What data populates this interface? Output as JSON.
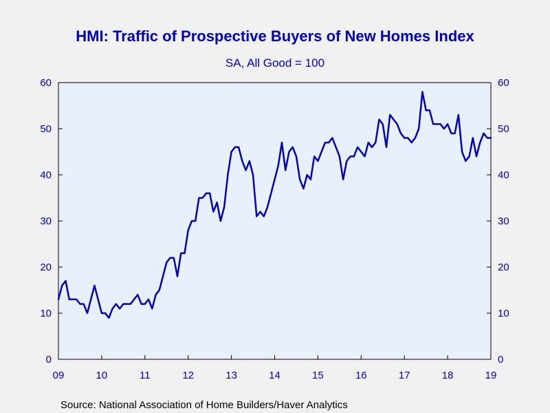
{
  "chart_data": {
    "type": "line",
    "title": "HMI: Traffic of Prospective Buyers of New Homes Index",
    "subtitle": "SA, All Good = 100",
    "source": "Source:  National Association of Home Builders/Haver Analytics",
    "ylim": [
      0,
      60
    ],
    "y_ticks": [
      "0",
      "10",
      "20",
      "30",
      "40",
      "50",
      "60"
    ],
    "x_ticks": [
      "09",
      "10",
      "11",
      "12",
      "13",
      "14",
      "15",
      "16",
      "17",
      "18",
      "19"
    ],
    "grid": false,
    "line_color": "#0000b4",
    "plot_background": "#e8f0fc",
    "x": [
      2009.0,
      2009.0833,
      2009.1667,
      2009.25,
      2009.3333,
      2009.4167,
      2009.5,
      2009.5833,
      2009.6667,
      2009.75,
      2009.8333,
      2009.9167,
      2010.0,
      2010.0833,
      2010.1667,
      2010.25,
      2010.3333,
      2010.4167,
      2010.5,
      2010.5833,
      2010.6667,
      2010.75,
      2010.8333,
      2010.9167,
      2011.0,
      2011.0833,
      2011.1667,
      2011.25,
      2011.3333,
      2011.4167,
      2011.5,
      2011.5833,
      2011.6667,
      2011.75,
      2011.8333,
      2011.9167,
      2012.0,
      2012.0833,
      2012.1667,
      2012.25,
      2012.3333,
      2012.4167,
      2012.5,
      2012.5833,
      2012.6667,
      2012.75,
      2012.8333,
      2012.9167,
      2013.0,
      2013.0833,
      2013.1667,
      2013.25,
      2013.3333,
      2013.4167,
      2013.5,
      2013.5833,
      2013.6667,
      2013.75,
      2013.8333,
      2013.9167,
      2014.0,
      2014.0833,
      2014.1667,
      2014.25,
      2014.3333,
      2014.4167,
      2014.5,
      2014.5833,
      2014.6667,
      2014.75,
      2014.8333,
      2014.9167,
      2015.0,
      2015.0833,
      2015.1667,
      2015.25,
      2015.3333,
      2015.4167,
      2015.5,
      2015.5833,
      2015.6667,
      2015.75,
      2015.8333,
      2015.9167,
      2016.0,
      2016.0833,
      2016.1667,
      2016.25,
      2016.3333,
      2016.4167,
      2016.5,
      2016.5833,
      2016.6667,
      2016.75,
      2016.8333,
      2016.9167,
      2017.0,
      2017.0833,
      2017.1667,
      2017.25,
      2017.3333,
      2017.4167,
      2017.5,
      2017.5833,
      2017.6667,
      2017.75,
      2017.8333,
      2017.9167,
      2018.0,
      2018.0833,
      2018.1667,
      2018.25,
      2018.3333,
      2018.4167,
      2018.5,
      2018.5833,
      2018.6667,
      2018.75,
      2018.8333,
      2018.9167,
      2019.0
    ],
    "series": [
      {
        "values": [
          13,
          16,
          17,
          13,
          13,
          13,
          12,
          12,
          10,
          13,
          16,
          13,
          10,
          10,
          9,
          11,
          12,
          11,
          12,
          12,
          12,
          13,
          14,
          12,
          12,
          13,
          11,
          14,
          15,
          18,
          21,
          22,
          22,
          18,
          23,
          23,
          28,
          30,
          30,
          35,
          35,
          36,
          36,
          32,
          34,
          30,
          33,
          40,
          45,
          46,
          46,
          43,
          41,
          43,
          40,
          31,
          32,
          31,
          33,
          36,
          39,
          42,
          47,
          41,
          45,
          46,
          44,
          39,
          37,
          40,
          39,
          44,
          43,
          45,
          47,
          47,
          48,
          46,
          44,
          39,
          43,
          44,
          44,
          46,
          45,
          44,
          47,
          46,
          47,
          52,
          51,
          46,
          53,
          52,
          51,
          49,
          48,
          48,
          47,
          48,
          50,
          58,
          54,
          54,
          51,
          51,
          51,
          50,
          51,
          49,
          49,
          53,
          45,
          43,
          44,
          48,
          44,
          47,
          49,
          48,
          48
        ]
      }
    ]
  }
}
